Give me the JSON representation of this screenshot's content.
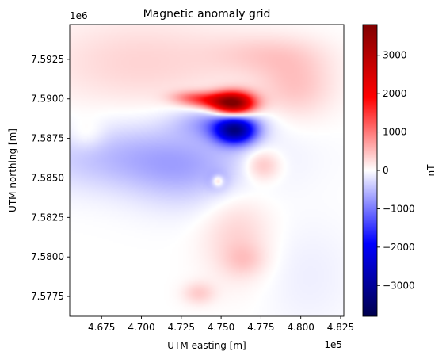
{
  "chart_data": {
    "type": "heatmap",
    "title": "Magnetic anomaly grid",
    "xlabel": "UTM easting [m]",
    "ylabel": "UTM northing [m]",
    "x_multiplier": "1e5",
    "y_multiplier": "1e6",
    "xlim": [
      465500,
      482700
    ],
    "ylim": [
      7576250,
      7594700
    ],
    "x_ticks": [
      {
        "value": 467500,
        "label": "4.675"
      },
      {
        "value": 470000,
        "label": "4.700"
      },
      {
        "value": 472500,
        "label": "4.725"
      },
      {
        "value": 475000,
        "label": "4.750"
      },
      {
        "value": 477500,
        "label": "4.775"
      },
      {
        "value": 480000,
        "label": "4.800"
      },
      {
        "value": 482500,
        "label": "4.825"
      }
    ],
    "y_ticks": [
      {
        "value": 7577500,
        "label": "7.5775"
      },
      {
        "value": 7580000,
        "label": "7.5800"
      },
      {
        "value": 7582500,
        "label": "7.5825"
      },
      {
        "value": 7585000,
        "label": "7.5850"
      },
      {
        "value": 7587500,
        "label": "7.5875"
      },
      {
        "value": 7590000,
        "label": "7.5900"
      },
      {
        "value": 7592500,
        "label": "7.5925"
      }
    ],
    "colormap": "seismic",
    "colorbar": {
      "label": "nT",
      "range": [
        -3800,
        3800
      ],
      "ticks": [
        {
          "value": 3000,
          "label": "3000"
        },
        {
          "value": 2000,
          "label": "2000"
        },
        {
          "value": 1000,
          "label": "1000"
        },
        {
          "value": 0,
          "label": "0"
        },
        {
          "value": -1000,
          "label": "−1000"
        },
        {
          "value": -2000,
          "label": "−2000"
        },
        {
          "value": -3000,
          "label": "−3000"
        }
      ]
    },
    "grid": false,
    "features": [
      {
        "kind": "positive",
        "x": 475800,
        "y": 7589700,
        "sx": 900,
        "sy": 500,
        "amp": 3600
      },
      {
        "kind": "positive",
        "x": 474300,
        "y": 7589900,
        "sx": 1100,
        "sy": 350,
        "amp": 1300
      },
      {
        "kind": "positive",
        "x": 473000,
        "y": 7590100,
        "sx": 900,
        "sy": 300,
        "amp": 500
      },
      {
        "kind": "negative",
        "x": 475900,
        "y": 7588000,
        "sx": 900,
        "sy": 600,
        "amp": -2700
      },
      {
        "kind": "negative",
        "x": 474800,
        "y": 7588500,
        "sx": 1800,
        "sy": 700,
        "amp": -700
      },
      {
        "kind": "negative",
        "x": 470000,
        "y": 7586300,
        "sx": 5000,
        "sy": 1500,
        "amp": -550
      },
      {
        "kind": "negative",
        "x": 472800,
        "y": 7585000,
        "sx": 2500,
        "sy": 1600,
        "amp": -300
      },
      {
        "kind": "positive",
        "x": 470000,
        "y": 7592300,
        "sx": 4500,
        "sy": 2000,
        "amp": 320
      },
      {
        "kind": "positive",
        "x": 479700,
        "y": 7590800,
        "sx": 1700,
        "sy": 1400,
        "amp": 420
      },
      {
        "kind": "positive",
        "x": 477900,
        "y": 7592800,
        "sx": 2500,
        "sy": 900,
        "amp": 300
      },
      {
        "kind": "positive",
        "x": 466600,
        "y": 7587700,
        "sx": 800,
        "sy": 700,
        "amp": 230
      },
      {
        "kind": "positive",
        "x": 477600,
        "y": 7585800,
        "sx": 800,
        "sy": 700,
        "amp": 560
      },
      {
        "kind": "positive",
        "x": 476000,
        "y": 7581300,
        "sx": 1500,
        "sy": 2000,
        "amp": 330
      },
      {
        "kind": "positive",
        "x": 476500,
        "y": 7579800,
        "sx": 900,
        "sy": 700,
        "amp": 260
      },
      {
        "kind": "positive",
        "x": 474800,
        "y": 7584800,
        "sx": 250,
        "sy": 250,
        "amp": 900
      },
      {
        "kind": "negative",
        "x": 474800,
        "y": 7584800,
        "sx": 450,
        "sy": 450,
        "amp": -350
      },
      {
        "kind": "positive",
        "x": 473600,
        "y": 7577700,
        "sx": 700,
        "sy": 500,
        "amp": 370
      },
      {
        "kind": "negative",
        "x": 480500,
        "y": 7578800,
        "sx": 2000,
        "sy": 2500,
        "amp": -120
      }
    ]
  }
}
